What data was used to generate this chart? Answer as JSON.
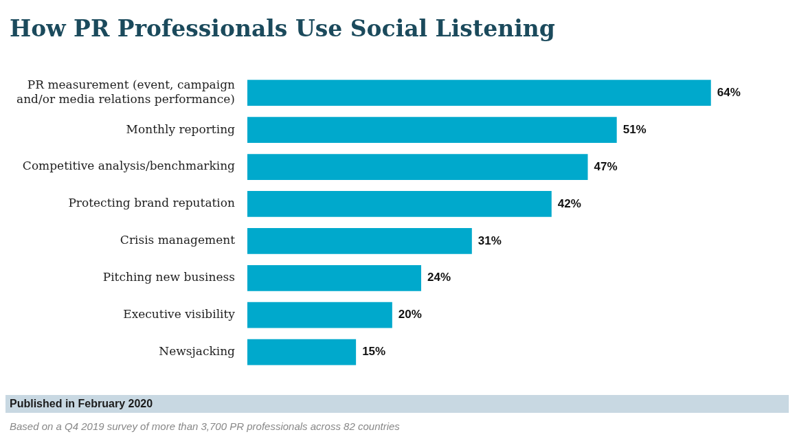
{
  "chart_data": {
    "type": "bar",
    "orientation": "horizontal",
    "title": "How PR Professionals Use Social Listening",
    "categories": [
      "PR measurement (event, campaign and/or media relations performance)",
      "Monthly reporting",
      "Competitive analysis/benchmarking",
      "Protecting brand reputation",
      "Crisis management",
      "Pitching new business",
      "Executive visibility",
      "Newsjacking"
    ],
    "values": [
      64,
      51,
      47,
      42,
      31,
      24,
      20,
      15
    ],
    "value_labels": [
      "64%",
      "51%",
      "47%",
      "42%",
      "31%",
      "24%",
      "20%",
      "15%"
    ],
    "color": "#00a9cc",
    "legend": false,
    "annotations": [
      "Published in February 2020",
      "Based on a Q4 2019 survey of more than 3,700 PR professionals across 82 countries"
    ]
  }
}
